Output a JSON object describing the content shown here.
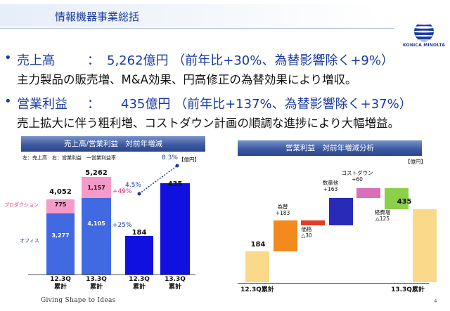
{
  "header": {
    "title": "情報機器事業総括",
    "logo_text": "KONICA MINOLTA"
  },
  "bullets": [
    {
      "label": "売上高",
      "colon": "：",
      "value": "5,262億円 （前年比+30%、為替影響除く+9%）",
      "detail": "主力製品の販売増、M&A効果、円高修正の為替効果により増収。"
    },
    {
      "label": "営業利益",
      "colon": "：",
      "value": "435億円 （前年比+137%、為替影響除く+37%）",
      "detail": "売上拡大に伴う粗利増、コストダウン計画の順調な進捗により大幅増益。"
    }
  ],
  "left_panel": {
    "heading": "売上高/営業利益　対前年増減",
    "legend_note": "左：売上高　右：営業利益　一営業利益率",
    "unit": "【億円】",
    "segment_production": "プロダクション",
    "segment_office": "オフィス",
    "sales": {
      "fy12": {
        "total": "4,052",
        "production": "775",
        "office": "3,277",
        "label1": "12.3Q",
        "label2": "累計"
      },
      "fy13": {
        "total": "5,262",
        "production": "1,157",
        "office": "4,105",
        "label1": "13.3Q",
        "label2": "累計"
      },
      "growth_production": "+49%",
      "growth_office": "+25%"
    },
    "profit": {
      "fy12": {
        "value": "184",
        "label1": "12.3Q",
        "label2": "累計"
      },
      "fy13": {
        "value": "435",
        "label1": "13.3Q",
        "label2": "累計"
      },
      "margin_fy12": "4.5%",
      "margin_fy13": "8.3%"
    }
  },
  "right_panel": {
    "heading": "営業利益　対前年増減分析",
    "unit": "【億円】",
    "start": {
      "value": "184",
      "label": "12.3Q累計"
    },
    "steps": [
      {
        "name": "為替",
        "value": "+183",
        "color": "#f28a1e"
      },
      {
        "name": "価格",
        "value": "△30",
        "color": "#e23b2a"
      },
      {
        "name": "数量他",
        "value": "+163",
        "color": "#2a2ab8"
      },
      {
        "name": "コストダウン",
        "value": "+60",
        "color": "#d96fb8"
      },
      {
        "name": "経費増",
        "value": "△125",
        "color": "#8ccf4a"
      }
    ],
    "end": {
      "value": "435",
      "label": "13.3Q累計"
    }
  },
  "chart_data": [
    {
      "type": "bar",
      "title": "売上高/営業利益　対前年増減",
      "categories": [
        "12.3Q累計",
        "13.3Q累計"
      ],
      "series": [
        {
          "name": "オフィス",
          "values": [
            3277,
            4105
          ]
        },
        {
          "name": "プロダクション",
          "values": [
            775,
            1157
          ]
        }
      ],
      "totals": [
        4052,
        5262
      ],
      "growth": {
        "オフィス": "+25%",
        "プロダクション": "+49%"
      },
      "operating_profit": [
        184,
        435
      ],
      "operating_margin_pct": [
        4.5,
        8.3
      ],
      "unit": "億円"
    },
    {
      "type": "bar",
      "subtype": "waterfall",
      "title": "営業利益　対前年増減分析",
      "categories": [
        "12.3Q累計",
        "為替",
        "価格",
        "数量他",
        "コストダウン",
        "経費増",
        "13.3Q累計"
      ],
      "values": [
        184,
        183,
        -30,
        163,
        60,
        -125,
        435
      ],
      "unit": "億円"
    }
  ],
  "footer": {
    "tagline": "Giving Shape to Ideas",
    "page": "4"
  }
}
